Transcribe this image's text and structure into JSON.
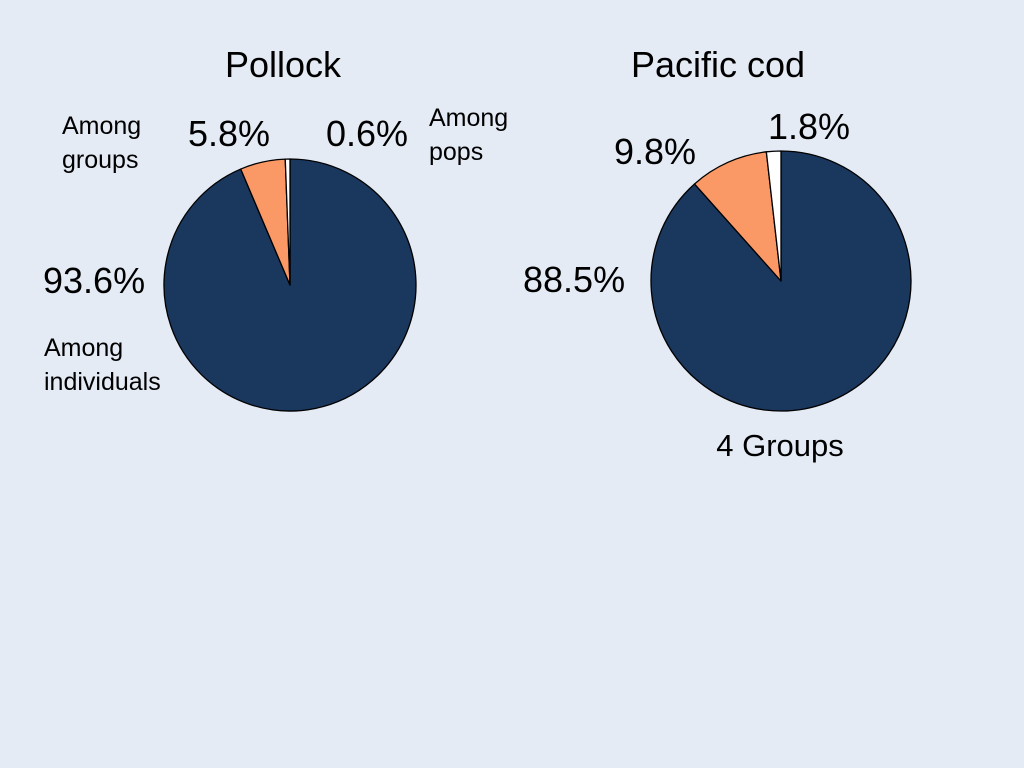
{
  "chart_data": [
    {
      "type": "pie",
      "title": "Pollock",
      "slices": [
        {
          "label": "Among individuals",
          "value": 93.6,
          "value_label": "93.6%",
          "color": "#1a375e"
        },
        {
          "label": "Among groups",
          "value": 5.8,
          "value_label": "5.8%",
          "color": "#fa9866"
        },
        {
          "label": "Among pops",
          "value": 0.6,
          "value_label": "0.6%",
          "color": "#ffffff"
        }
      ],
      "annotations": {
        "among_groups": [
          "Among",
          "groups"
        ],
        "among_pops": [
          "Among",
          "pops"
        ],
        "among_individuals": [
          "Among",
          "individuals"
        ]
      }
    },
    {
      "type": "pie",
      "title": "Pacific cod",
      "slices": [
        {
          "label": "Among individuals",
          "value": 88.5,
          "value_label": "88.5%",
          "color": "#1a375e"
        },
        {
          "label": "Among groups",
          "value": 9.8,
          "value_label": "9.8%",
          "color": "#fa9866"
        },
        {
          "label": "Among pops",
          "value": 1.8,
          "value_label": "1.8%",
          "color": "#ffffff"
        }
      ],
      "note": "4 Groups"
    }
  ],
  "colors": {
    "background": "#e4ebf5",
    "outline": "#000000"
  }
}
